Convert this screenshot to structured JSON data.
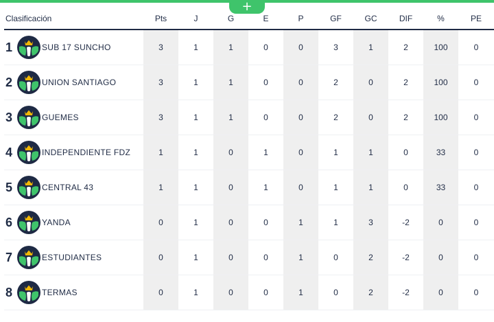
{
  "header": {
    "title": "Clasificación",
    "add_label": "+",
    "columns": [
      "Pts",
      "J",
      "G",
      "E",
      "P",
      "GF",
      "GC",
      "DIF",
      "%",
      "PE"
    ]
  },
  "icons": {
    "team_crest": "team-crest-icon",
    "add": "plus-icon"
  },
  "colors": {
    "accent": "#3fc46b",
    "navy": "#1e2a44",
    "shade": "#efefef",
    "crown": "#f2b705"
  },
  "standings": [
    {
      "pos": "1",
      "team": "SUB 17 SUNCHO",
      "pts": "3",
      "j": "1",
      "g": "1",
      "e": "0",
      "p": "0",
      "gf": "3",
      "gc": "1",
      "dif": "2",
      "pct": "100",
      "pe": "0"
    },
    {
      "pos": "2",
      "team": "UNION SANTIAGO",
      "pts": "3",
      "j": "1",
      "g": "1",
      "e": "0",
      "p": "0",
      "gf": "2",
      "gc": "0",
      "dif": "2",
      "pct": "100",
      "pe": "0"
    },
    {
      "pos": "3",
      "team": "GUEMES",
      "pts": "3",
      "j": "1",
      "g": "1",
      "e": "0",
      "p": "0",
      "gf": "2",
      "gc": "0",
      "dif": "2",
      "pct": "100",
      "pe": "0"
    },
    {
      "pos": "4",
      "team": "INDEPENDIENTE FDZ",
      "pts": "1",
      "j": "1",
      "g": "0",
      "e": "1",
      "p": "0",
      "gf": "1",
      "gc": "1",
      "dif": "0",
      "pct": "33",
      "pe": "0"
    },
    {
      "pos": "5",
      "team": "CENTRAL 43",
      "pts": "1",
      "j": "1",
      "g": "0",
      "e": "1",
      "p": "0",
      "gf": "1",
      "gc": "1",
      "dif": "0",
      "pct": "33",
      "pe": "0"
    },
    {
      "pos": "6",
      "team": "YANDA",
      "pts": "0",
      "j": "1",
      "g": "0",
      "e": "0",
      "p": "1",
      "gf": "1",
      "gc": "3",
      "dif": "-2",
      "pct": "0",
      "pe": "0"
    },
    {
      "pos": "7",
      "team": "ESTUDIANTES",
      "pts": "0",
      "j": "1",
      "g": "0",
      "e": "0",
      "p": "1",
      "gf": "0",
      "gc": "2",
      "dif": "-2",
      "pct": "0",
      "pe": "0"
    },
    {
      "pos": "8",
      "team": "TERMAS",
      "pts": "0",
      "j": "1",
      "g": "0",
      "e": "0",
      "p": "1",
      "gf": "0",
      "gc": "2",
      "dif": "-2",
      "pct": "0",
      "pe": "0"
    }
  ]
}
